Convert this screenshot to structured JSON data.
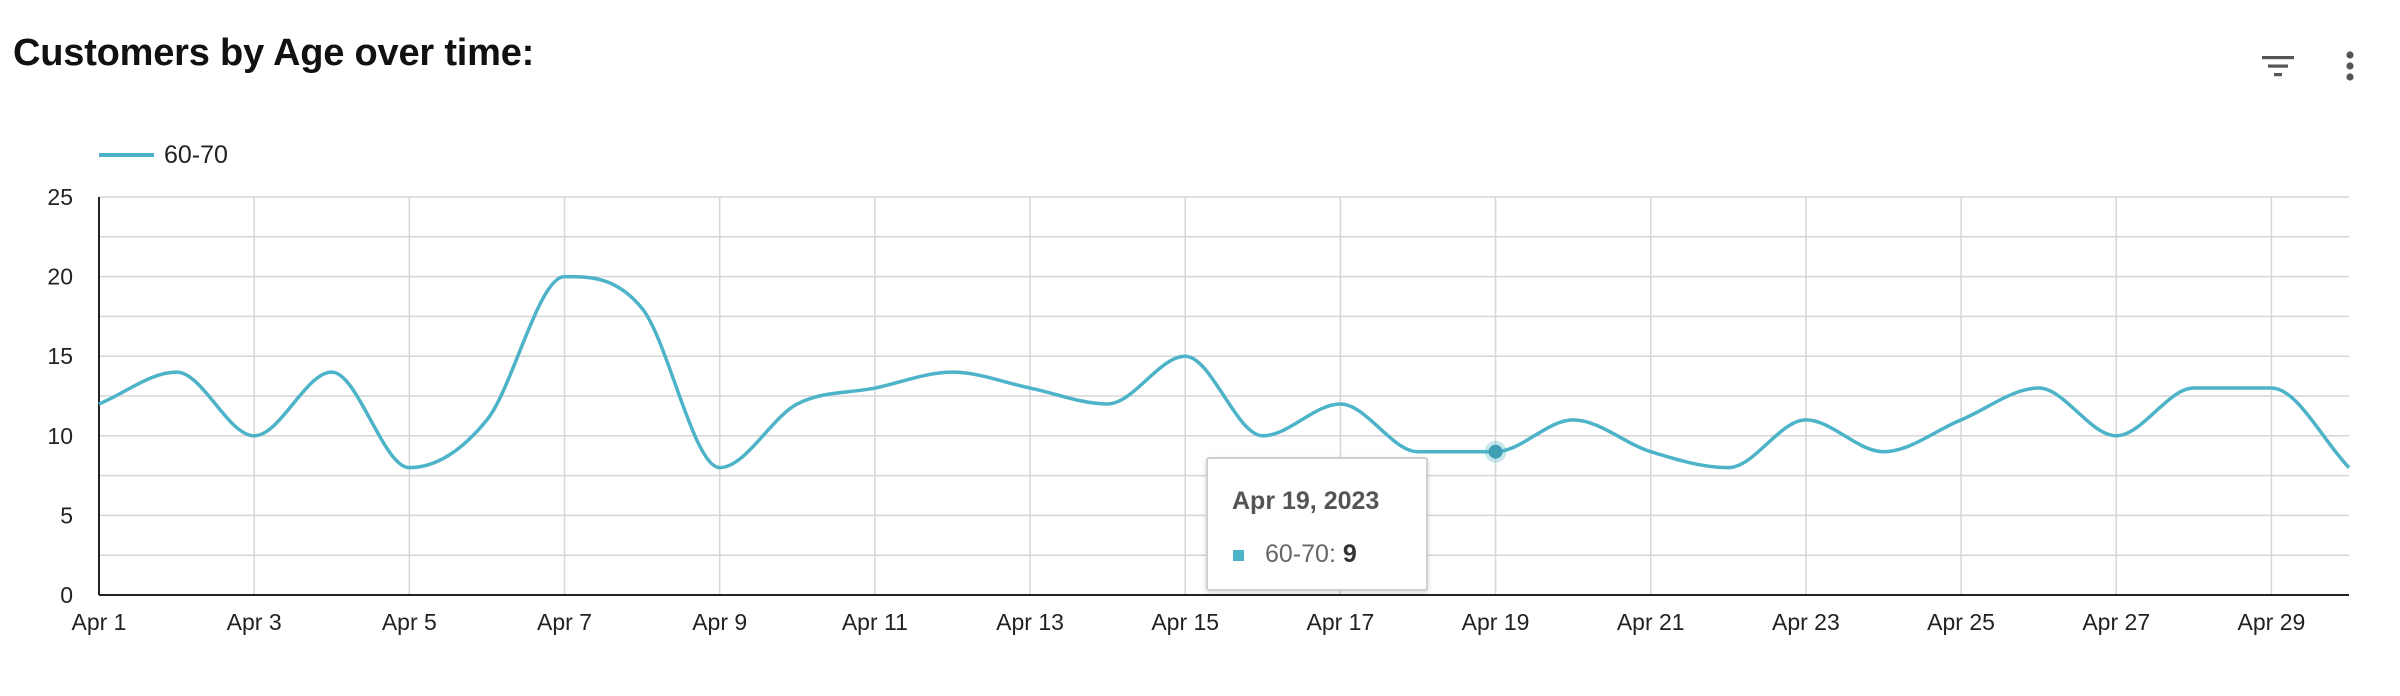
{
  "header": {
    "title": "Customers by Age over time:",
    "filter_icon": "filter-icon",
    "more_icon": "more-vert-icon"
  },
  "tooltip": {
    "date": "Apr 19, 2023",
    "series_label": "60-70: ",
    "value": "9"
  },
  "chart_data": {
    "type": "line",
    "title": "Customers by Age over time:",
    "xlabel": "",
    "ylabel": "",
    "ylim": [
      0,
      25
    ],
    "yticks": [
      0,
      5,
      10,
      15,
      20,
      25
    ],
    "grid": true,
    "legend_position": "top-left",
    "line_color": "#4db3c8",
    "x": [
      "Apr 1",
      "Apr 2",
      "Apr 3",
      "Apr 4",
      "Apr 5",
      "Apr 6",
      "Apr 7",
      "Apr 8",
      "Apr 9",
      "Apr 10",
      "Apr 11",
      "Apr 12",
      "Apr 13",
      "Apr 14",
      "Apr 15",
      "Apr 16",
      "Apr 17",
      "Apr 18",
      "Apr 19",
      "Apr 20",
      "Apr 21",
      "Apr 22",
      "Apr 23",
      "Apr 24",
      "Apr 25",
      "Apr 26",
      "Apr 27",
      "Apr 28",
      "Apr 29",
      "Apr 30"
    ],
    "xtick_labels": [
      "Apr 1",
      "Apr 3",
      "Apr 5",
      "Apr 7",
      "Apr 9",
      "Apr 11",
      "Apr 13",
      "Apr 15",
      "Apr 17",
      "Apr 19",
      "Apr 21",
      "Apr 23",
      "Apr 25",
      "Apr 27",
      "Apr 29"
    ],
    "series": [
      {
        "name": "60-70",
        "values": [
          12,
          14,
          10,
          14,
          8,
          11,
          20,
          18,
          8,
          12,
          13,
          14,
          13,
          12,
          15,
          10,
          12,
          9,
          9,
          11,
          9,
          8,
          11,
          9,
          11,
          13,
          10,
          13,
          13,
          8
        ]
      }
    ],
    "highlighted_point": {
      "x": "Apr 19",
      "value": 9
    }
  }
}
